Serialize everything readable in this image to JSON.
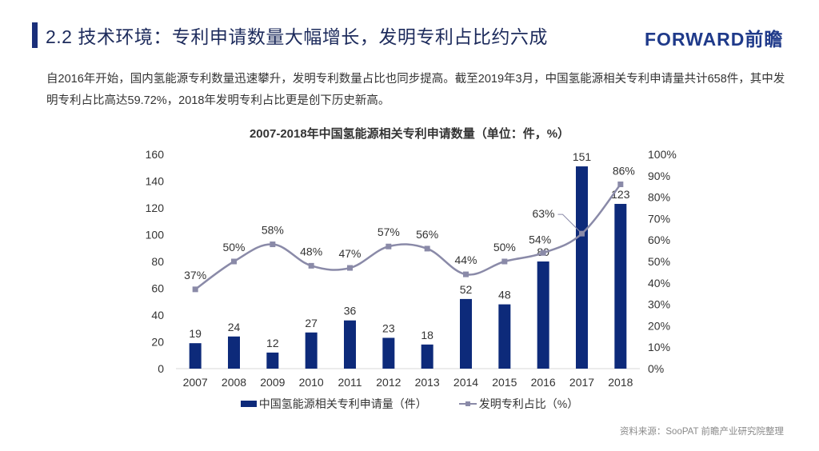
{
  "header": {
    "title": "2.2 技术环境：专利申请数量大幅增长，发明专利占比约六成",
    "logo_text": "FORWARD前瞻"
  },
  "intro": {
    "text": "自2016年开始，国内氢能源专利数量迅速攀升，发明专利数量占比也同步提高。截至2019年3月，中国氢能源相关专利申请量共计658件，其中发明专利占比高达59.72%，2018年发明专利占比更是创下历史新高。"
  },
  "source": "资料来源：SooPAT 前瞻产业研究院整理",
  "colors": {
    "accent": "#1a2f7a",
    "bar": "#0d2a7a",
    "line": "#8a8aa8",
    "text": "#333333"
  },
  "chart_data": {
    "type": "bar",
    "title": "2007-2018年中国氢能源相关专利申请数量（单位：件，%）",
    "categories": [
      "2007",
      "2008",
      "2009",
      "2010",
      "2011",
      "2012",
      "2013",
      "2014",
      "2015",
      "2016",
      "2017",
      "2018"
    ],
    "series": [
      {
        "name": "中国氢能源相关专利申请量（件）",
        "type": "bar",
        "axis": "left",
        "values": [
          19,
          24,
          12,
          27,
          36,
          23,
          18,
          52,
          48,
          80,
          151,
          123
        ],
        "labels": [
          "19",
          "24",
          "12",
          "27",
          "36",
          "23",
          "18",
          "52",
          "48",
          "80",
          "151",
          "123"
        ]
      },
      {
        "name": "发明专利占比（%）",
        "type": "line",
        "axis": "right",
        "values": [
          37,
          50,
          58,
          48,
          47,
          57,
          56,
          44,
          50,
          54,
          63,
          86
        ],
        "labels": [
          "37%",
          "50%",
          "58%",
          "48%",
          "47%",
          "57%",
          "56%",
          "44%",
          "50%",
          "54%",
          "63%",
          "86%"
        ]
      }
    ],
    "y_left": {
      "min": 0,
      "max": 160,
      "ticks": [
        "0",
        "20",
        "40",
        "60",
        "80",
        "100",
        "120",
        "140",
        "160"
      ]
    },
    "y_right": {
      "min": 0,
      "max": 100,
      "ticks": [
        "0%",
        "10%",
        "20%",
        "30%",
        "40%",
        "50%",
        "60%",
        "70%",
        "80%",
        "90%",
        "100%"
      ]
    },
    "grid": false,
    "legend": "bottom"
  }
}
